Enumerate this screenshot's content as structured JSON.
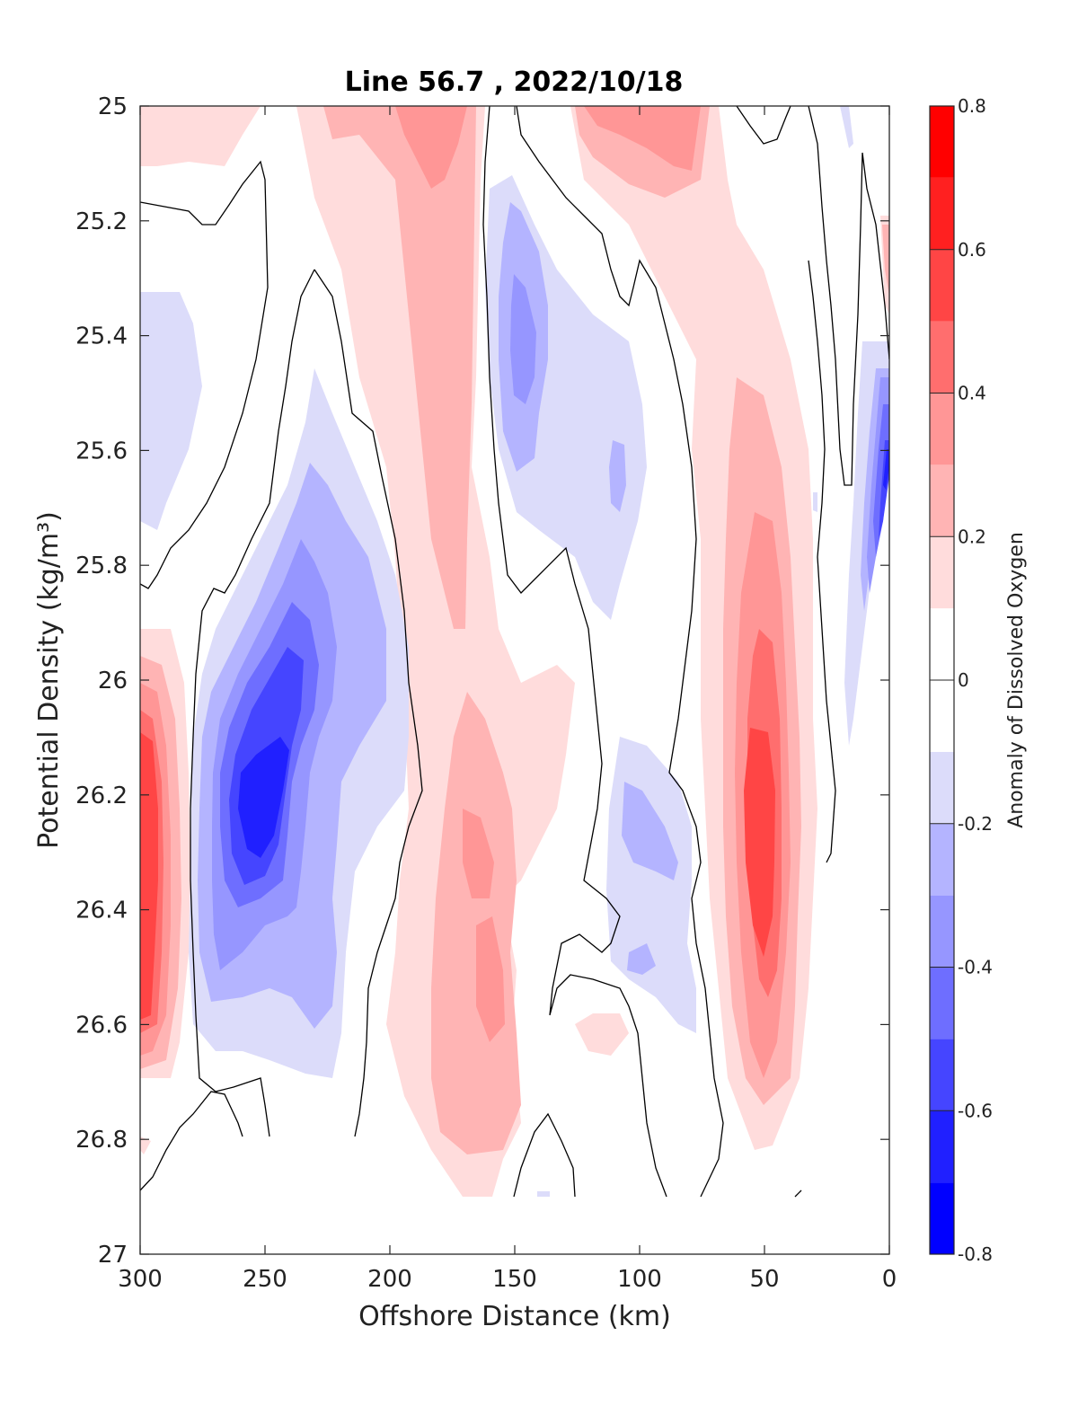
{
  "chart_data": {
    "type": "heatmap",
    "subtype": "filled-contour",
    "title": "Line 56.7 , 2022/10/18",
    "xlabel": "Offshore Distance (km)",
    "ylabel": "Potential Density (kg/m³)",
    "xlim": [
      300,
      0
    ],
    "ylim": [
      25,
      27
    ],
    "y_reversed": true,
    "x_reversed": true,
    "xticks": [
      300,
      250,
      200,
      150,
      100,
      50,
      0
    ],
    "yticks": [
      25,
      25.2,
      25.4,
      25.6,
      25.8,
      26,
      26.2,
      26.4,
      26.6,
      26.8,
      27
    ],
    "x_tick_labels": [
      "300",
      "250",
      "200",
      "150",
      "100",
      "50",
      "0"
    ],
    "y_tick_labels": [
      "25",
      "25.2",
      "25.4",
      "25.6",
      "25.8",
      "26",
      "26.2",
      "26.4",
      "26.6",
      "26.8",
      "27"
    ],
    "colorbar": {
      "label": "Anomaly of Dissolved Oxygen",
      "range": [
        -0.8,
        0.8
      ],
      "levels": [
        -0.8,
        -0.7,
        -0.6,
        -0.5,
        -0.4,
        -0.3,
        -0.2,
        -0.1,
        0.1,
        0.2,
        0.3,
        0.4,
        0.5,
        0.6,
        0.7,
        0.8
      ],
      "tick_values": [
        0.8,
        0.6,
        0.4,
        0.2,
        0,
        -0.2,
        -0.4,
        -0.6,
        -0.8
      ],
      "tick_labels": [
        "0.8",
        "0.6",
        "0.4",
        "0.2",
        "0",
        "-0.2",
        "-0.4",
        "-0.6",
        "-0.8"
      ],
      "colors": [
        "#0000ff",
        "#2020ff",
        "#4545ff",
        "#6e6eff",
        "#9696ff",
        "#b4b4ff",
        "#dcdcfa",
        "#ffffff",
        "#ffdcdc",
        "#ffb4b4",
        "#ff9696",
        "#ff6e6e",
        "#ff4545",
        "#ff2020",
        "#ff0000"
      ]
    },
    "features": [
      {
        "name": "negative core",
        "x": 250,
        "y": 26.25,
        "value": -0.65
      },
      {
        "name": "negative core",
        "x": 145,
        "y": 25.4,
        "value": -0.35
      },
      {
        "name": "negative core",
        "x": 95,
        "y": 26.3,
        "value": -0.3
      },
      {
        "name": "negative core",
        "x": 5,
        "y": 25.7,
        "value": -0.5
      },
      {
        "name": "positive core",
        "x": 297,
        "y": 26.3,
        "value": 0.55
      },
      {
        "name": "positive core",
        "x": 50,
        "y": 26.2,
        "value": 0.55
      },
      {
        "name": "positive core",
        "x": 180,
        "y": 25.1,
        "value": 0.3
      },
      {
        "name": "positive core",
        "x": 165,
        "y": 26.3,
        "value": 0.35
      },
      {
        "name": "positive core",
        "x": 160,
        "y": 26.55,
        "value": 0.35
      },
      {
        "name": "positive core",
        "x": 95,
        "y": 25.05,
        "value": 0.3
      },
      {
        "name": "positive core",
        "x": 2,
        "y": 25.3,
        "value": 0.35
      }
    ]
  }
}
